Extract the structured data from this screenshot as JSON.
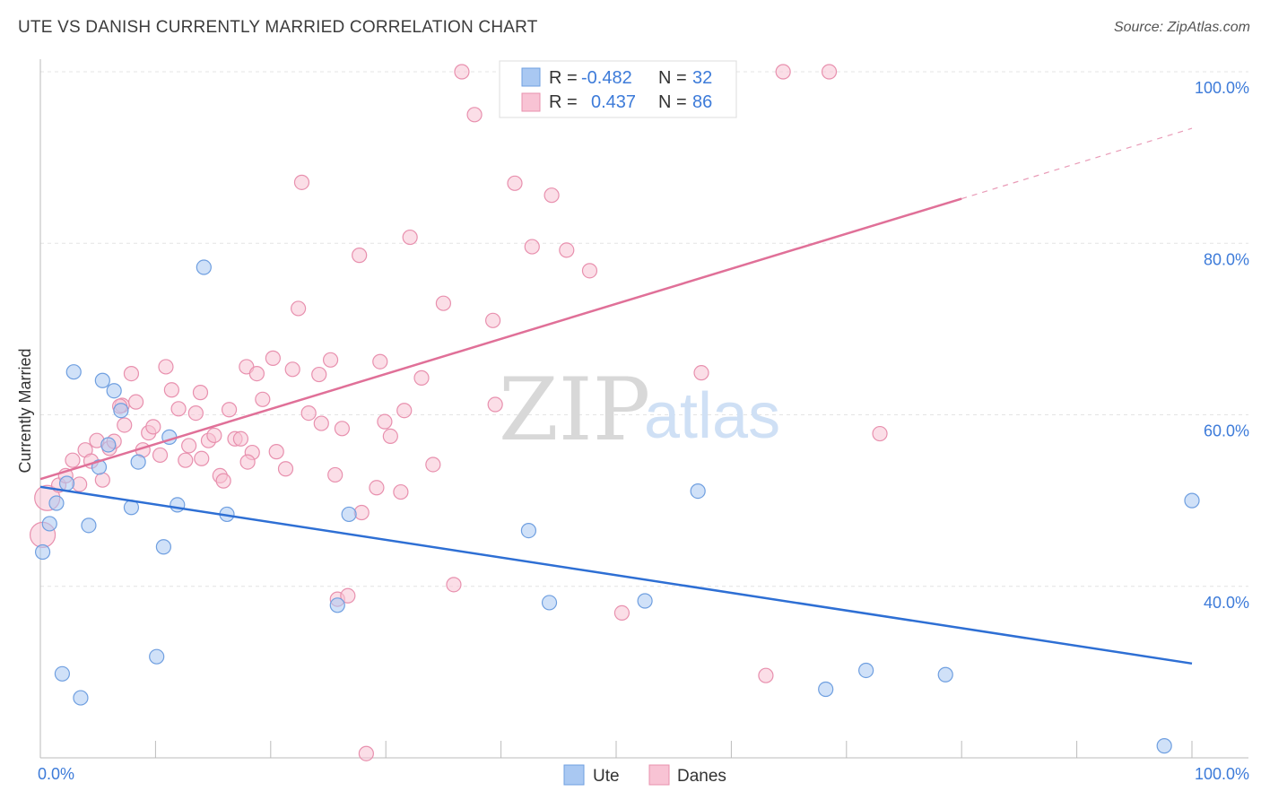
{
  "header": {
    "title": "UTE VS DANISH CURRENTLY MARRIED CORRELATION CHART",
    "source": "Source: ZipAtlas.com"
  },
  "watermark": {
    "zip": "ZIP",
    "atlas": "atlas"
  },
  "legend": {
    "rows": [
      {
        "r_label": "R =",
        "r_value": "-0.482",
        "n_label": "N =",
        "n_value": "32",
        "color": "#a9c8f2",
        "stroke": "#6f9fe0"
      },
      {
        "r_label": "R =",
        "r_value": "0.437",
        "n_label": "N =",
        "n_value": "86",
        "color": "#f8c3d4",
        "stroke": "#e890ae"
      }
    ]
  },
  "bottom_legend": [
    {
      "label": "Ute",
      "color": "#a9c8f2",
      "stroke": "#6f9fe0"
    },
    {
      "label": "Danes",
      "color": "#f8c3d4",
      "stroke": "#e890ae"
    }
  ],
  "chart_data": {
    "type": "scatter",
    "title": "UTE VS DANISH CURRENTLY MARRIED CORRELATION CHART",
    "xlabel": "",
    "ylabel": "Currently Married",
    "xlim": [
      0,
      100
    ],
    "ylim": [
      20,
      100
    ],
    "x_tick_labels": [
      "0.0%",
      "100.0%"
    ],
    "y_ticks": [
      40,
      60,
      80,
      100
    ],
    "y_tick_labels": [
      "40.0%",
      "60.0%",
      "80.0%",
      "100.0%"
    ],
    "grid": true,
    "legend_position": "top-center",
    "series": [
      {
        "name": "Ute",
        "color": "#a9c8f2",
        "stroke": "#6f9fe0",
        "trend": {
          "x": [
            0,
            100
          ],
          "y": [
            51.6,
            31.0
          ],
          "color": "#2e6fd4"
        },
        "points": [
          [
            0.2,
            44.0
          ],
          [
            0.8,
            47.3
          ],
          [
            1.4,
            49.7
          ],
          [
            1.9,
            29.8
          ],
          [
            2.9,
            65.0
          ],
          [
            3.5,
            27.0
          ],
          [
            4.2,
            47.1
          ],
          [
            5.1,
            53.9
          ],
          [
            5.4,
            64.0
          ],
          [
            5.9,
            56.5
          ],
          [
            6.4,
            62.8
          ],
          [
            7.0,
            60.5
          ],
          [
            8.5,
            54.5
          ],
          [
            7.9,
            49.2
          ],
          [
            10.1,
            31.8
          ],
          [
            10.7,
            44.6
          ],
          [
            11.2,
            57.4
          ],
          [
            11.9,
            49.5
          ],
          [
            14.2,
            77.2
          ],
          [
            16.2,
            48.4
          ],
          [
            25.8,
            37.8
          ],
          [
            26.8,
            48.4
          ],
          [
            42.4,
            46.5
          ],
          [
            44.2,
            38.1
          ],
          [
            52.5,
            38.3
          ],
          [
            57.1,
            51.1
          ],
          [
            68.2,
            28.0
          ],
          [
            71.7,
            30.2
          ],
          [
            78.6,
            29.7
          ],
          [
            97.6,
            21.4
          ],
          [
            100.0,
            50.0
          ],
          [
            2.3,
            52.0
          ]
        ]
      },
      {
        "name": "Danes",
        "color": "#f8c3d4",
        "stroke": "#e890ae",
        "trend": {
          "x": [
            0,
            80
          ],
          "y": [
            52.5,
            85.2
          ],
          "dash_to": [
            100,
            93.4
          ],
          "color": "#e07098"
        },
        "points": [
          [
            0.2,
            46.0
          ],
          [
            0.6,
            50.3
          ],
          [
            1.6,
            51.8
          ],
          [
            2.2,
            52.9
          ],
          [
            2.8,
            54.7
          ],
          [
            3.4,
            51.9
          ],
          [
            3.9,
            55.9
          ],
          [
            4.4,
            54.6
          ],
          [
            4.9,
            57.0
          ],
          [
            5.4,
            52.4
          ],
          [
            6.0,
            56.1
          ],
          [
            6.4,
            56.9
          ],
          [
            7.1,
            61.1
          ],
          [
            7.3,
            58.8
          ],
          [
            7.9,
            64.8
          ],
          [
            8.3,
            61.5
          ],
          [
            8.9,
            55.9
          ],
          [
            9.4,
            57.9
          ],
          [
            9.8,
            58.6
          ],
          [
            10.4,
            55.3
          ],
          [
            10.9,
            65.6
          ],
          [
            11.4,
            62.9
          ],
          [
            12.0,
            60.7
          ],
          [
            12.6,
            54.7
          ],
          [
            12.9,
            56.4
          ],
          [
            13.5,
            60.2
          ],
          [
            14.0,
            54.9
          ],
          [
            14.6,
            57.0
          ],
          [
            15.1,
            57.6
          ],
          [
            15.6,
            52.9
          ],
          [
            15.9,
            52.3
          ],
          [
            16.4,
            60.6
          ],
          [
            16.9,
            57.2
          ],
          [
            17.4,
            57.2
          ],
          [
            17.9,
            65.6
          ],
          [
            18.4,
            55.6
          ],
          [
            18.8,
            64.8
          ],
          [
            19.3,
            61.8
          ],
          [
            20.2,
            66.6
          ],
          [
            20.5,
            55.7
          ],
          [
            21.3,
            53.7
          ],
          [
            21.9,
            65.3
          ],
          [
            22.4,
            72.4
          ],
          [
            22.7,
            87.1
          ],
          [
            23.3,
            60.2
          ],
          [
            24.2,
            64.7
          ],
          [
            24.4,
            59.0
          ],
          [
            25.2,
            66.4
          ],
          [
            25.6,
            53.0
          ],
          [
            25.8,
            38.5
          ],
          [
            26.2,
            58.4
          ],
          [
            26.7,
            38.9
          ],
          [
            27.7,
            78.6
          ],
          [
            27.9,
            48.6
          ],
          [
            28.3,
            20.5
          ],
          [
            29.2,
            51.5
          ],
          [
            29.5,
            66.2
          ],
          [
            29.9,
            59.2
          ],
          [
            30.4,
            57.5
          ],
          [
            31.3,
            51.0
          ],
          [
            31.6,
            60.5
          ],
          [
            32.1,
            80.7
          ],
          [
            33.1,
            64.3
          ],
          [
            34.1,
            54.2
          ],
          [
            35.0,
            73.0
          ],
          [
            35.9,
            40.2
          ],
          [
            36.6,
            100.0
          ],
          [
            37.7,
            95.0
          ],
          [
            39.3,
            71.0
          ],
          [
            39.5,
            61.2
          ],
          [
            41.2,
            87.0
          ],
          [
            42.7,
            79.6
          ],
          [
            44.4,
            85.6
          ],
          [
            45.7,
            79.2
          ],
          [
            47.7,
            76.8
          ],
          [
            49.2,
            100.0
          ],
          [
            50.5,
            36.9
          ],
          [
            54.3,
            100.0
          ],
          [
            57.4,
            64.9
          ],
          [
            63.0,
            29.6
          ],
          [
            64.5,
            100.0
          ],
          [
            68.5,
            100.0
          ],
          [
            72.9,
            57.8
          ],
          [
            13.9,
            62.6
          ],
          [
            6.9,
            61.0
          ],
          [
            18.0,
            54.5
          ]
        ]
      }
    ]
  }
}
